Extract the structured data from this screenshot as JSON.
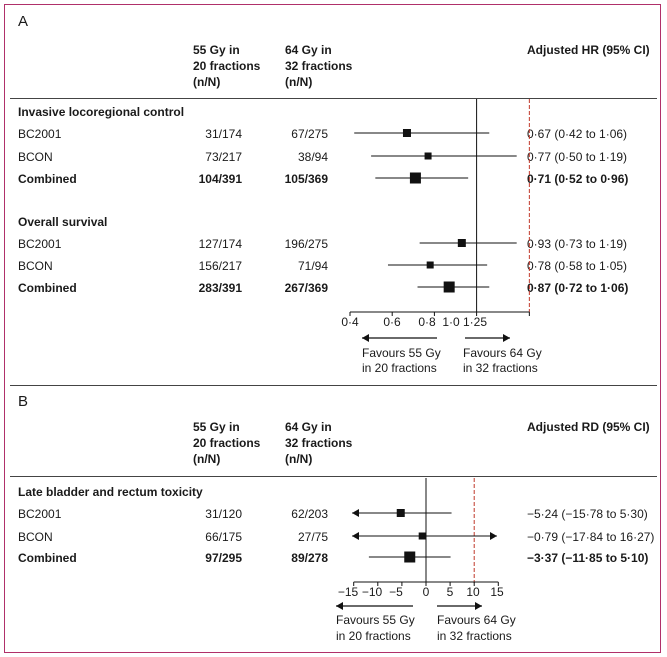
{
  "panel_a": {
    "label": "A",
    "col1_header": [
      "55 Gy in",
      "20 fractions",
      "(n/N)"
    ],
    "col2_header": [
      "64 Gy in",
      "32 fractions",
      "(n/N)"
    ],
    "effect_header": "Adjusted HR (95% CI)",
    "section1_title": "Invasive locoregional control",
    "section2_title": "Overall survival",
    "favours_left": [
      "Favours 55 Gy",
      "in 20 fractions"
    ],
    "favours_right": [
      "Favours 64 Gy",
      "in 32 fractions"
    ]
  },
  "panel_b": {
    "label": "B",
    "col1_header": [
      "55 Gy in",
      "20 fractions",
      "(n/N)"
    ],
    "col2_header": [
      "64 Gy in",
      "32 fractions",
      "(n/N)"
    ],
    "effect_header": "Adjusted RD (95% CI)",
    "section1_title": "Late bladder and rectum toxicity",
    "favours_left": [
      "Favours 55 Gy",
      "in 20 fractions"
    ],
    "favours_right": [
      "Favours 64 Gy",
      "in 32 fractions"
    ]
  },
  "chart_data": [
    {
      "type": "forest",
      "measure": "Adjusted HR (95% CI)",
      "axis": {
        "ticks": [
          "0·4",
          "0·6",
          "0·8",
          "1·0",
          "1·25"
        ],
        "tick_values": [
          0.4,
          0.6,
          0.8,
          1.0,
          1.25
        ],
        "xlim": [
          0.4,
          1.25
        ],
        "null_value": 1.0,
        "reference_value": 1.25
      },
      "rows": [
        {
          "section": "Invasive locoregional control",
          "label": "BC2001",
          "n1": "31/174",
          "n2": "67/275",
          "estimate": 0.67,
          "lower": 0.42,
          "upper": 1.06,
          "text": "0·67 (0·42 to 1·06)",
          "bold": false
        },
        {
          "section": "Invasive locoregional control",
          "label": "BCON",
          "n1": "73/217",
          "n2": "38/94",
          "estimate": 0.77,
          "lower": 0.5,
          "upper": 1.19,
          "text": "0·77 (0·50 to 1·19)",
          "bold": false
        },
        {
          "section": "Invasive locoregional control",
          "label": "Combined",
          "n1": "104/391",
          "n2": "105/369",
          "estimate": 0.71,
          "lower": 0.52,
          "upper": 0.96,
          "text": "0·71 (0·52 to 0·96)",
          "bold": true
        },
        {
          "section": "Overall survival",
          "label": "BC2001",
          "n1": "127/174",
          "n2": "196/275",
          "estimate": 0.93,
          "lower": 0.73,
          "upper": 1.19,
          "text": "0·93 (0·73 to 1·19)",
          "bold": false
        },
        {
          "section": "Overall survival",
          "label": "BCON",
          "n1": "156/217",
          "n2": "71/94",
          "estimate": 0.78,
          "lower": 0.58,
          "upper": 1.05,
          "text": "0·78 (0·58 to 1·05)",
          "bold": false
        },
        {
          "section": "Overall survival",
          "label": "Combined",
          "n1": "283/391",
          "n2": "267/369",
          "estimate": 0.87,
          "lower": 0.72,
          "upper": 1.06,
          "text": "0·87 (0·72 to 1·06)",
          "bold": true
        }
      ]
    },
    {
      "type": "forest",
      "measure": "Adjusted RD (95% CI)",
      "axis": {
        "ticks": [
          "−15",
          "−10",
          "−5",
          "0",
          "5",
          "10",
          "15"
        ],
        "tick_values": [
          -15,
          -10,
          -5,
          0,
          5,
          10,
          15
        ],
        "xlim": [
          -15,
          15
        ],
        "null_value": 0,
        "reference_value": 10
      },
      "rows": [
        {
          "section": "Late bladder and rectum toxicity",
          "label": "BC2001",
          "n1": "31/120",
          "n2": "62/203",
          "estimate": -5.24,
          "lower": -15.78,
          "upper": 5.3,
          "text": "−5·24 (−15·78 to 5·30)",
          "bold": false
        },
        {
          "section": "Late bladder and rectum toxicity",
          "label": "BCON",
          "n1": "66/175",
          "n2": "27/75",
          "estimate": -0.79,
          "lower": -17.84,
          "upper": 16.27,
          "text": "−0·79 (−17·84 to 16·27)",
          "bold": false
        },
        {
          "section": "Late bladder and rectum toxicity",
          "label": "Combined",
          "n1": "97/295",
          "n2": "89/278",
          "estimate": -3.37,
          "lower": -11.85,
          "upper": 5.1,
          "text": "−3·37 (−11·85 to 5·10)",
          "bold": true
        }
      ]
    }
  ]
}
